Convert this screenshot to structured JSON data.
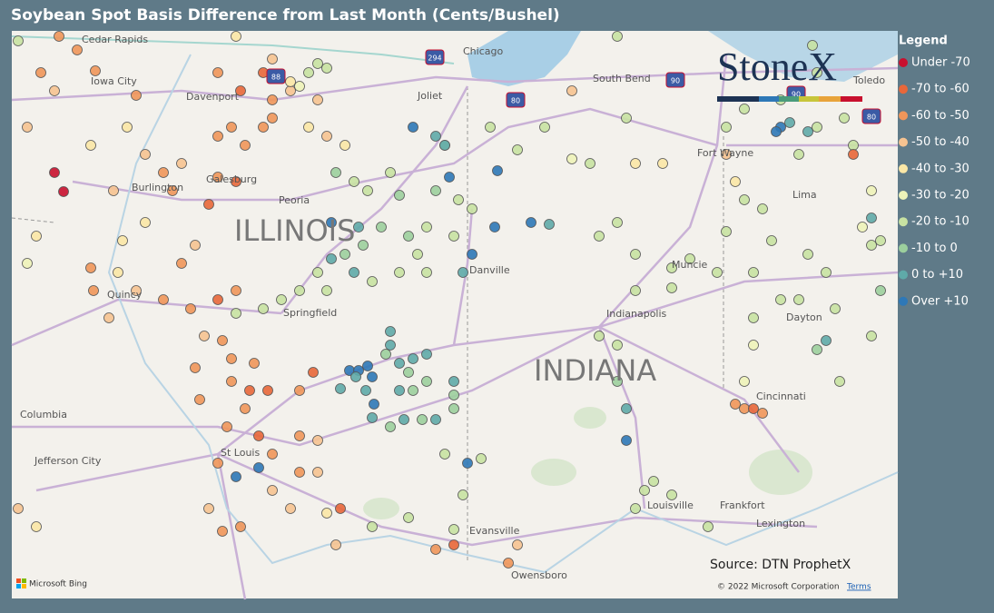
{
  "title": "Soybean Spot Basis Difference from Last Month (Cents/Bushel)",
  "legend": {
    "title": "Legend",
    "items": [
      {
        "label": "Under -70",
        "color": "#c8102e"
      },
      {
        "label": "-70 to -60",
        "color": "#e8673a"
      },
      {
        "label": "-60 to -50",
        "color": "#f0965a"
      },
      {
        "label": "-50 to -40",
        "color": "#f6c391"
      },
      {
        "label": "-40 to -30",
        "color": "#fbe7a6"
      },
      {
        "label": "-30 to -20",
        "color": "#eef3b9"
      },
      {
        "label": "-20 to -10",
        "color": "#c8e2a2"
      },
      {
        "label": "-10 to 0",
        "color": "#9ccf9d"
      },
      {
        "label": "0 to +10",
        "color": "#5faaa9"
      },
      {
        "label": "Over +10",
        "color": "#2e78b7"
      }
    ]
  },
  "map": {
    "states": [
      "ILLINOIS",
      "INDIANA"
    ],
    "cities": [
      "Cedar Rapids",
      "Iowa City",
      "Davenport",
      "Chicago",
      "South Bend",
      "Toledo",
      "Joliet",
      "Fort Wayne",
      "Burlington",
      "Galesburg",
      "Peoria",
      "Lima",
      "Muncie",
      "Danville",
      "Quincy",
      "Springfield",
      "Indianapolis",
      "Dayton",
      "Columbia",
      "Cincinnati",
      "Jefferson City",
      "St Louis",
      "Louisville",
      "Frankfort",
      "Lexington",
      "Evansville",
      "Owensboro"
    ],
    "shields": [
      "294",
      "80",
      "90",
      "88",
      "80",
      "90"
    ]
  },
  "logo": "StoneX",
  "source": "Source: DTN ProphetX",
  "attribution": {
    "provider": "Microsoft Bing",
    "copyright": "© 2022 Microsoft Corporation",
    "terms": "Terms"
  }
}
